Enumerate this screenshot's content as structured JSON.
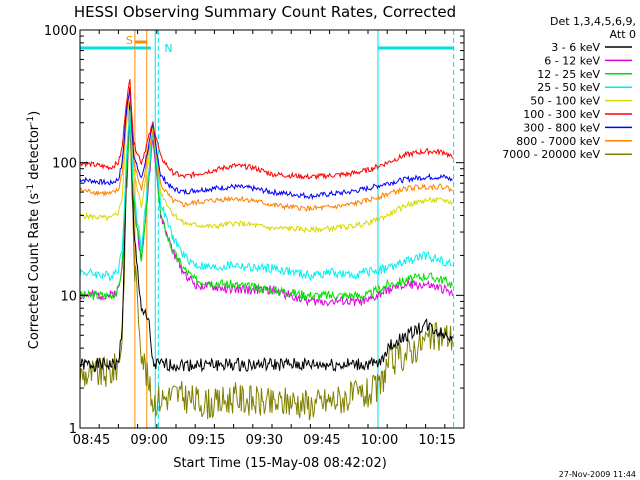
{
  "chart_data": {
    "type": "line",
    "title": "HESSI Observing Summary Count Rates, Corrected",
    "xlabel": "Start Time (15-May-08 08:42:02)",
    "ylabel_prefix": "Corrected Count Rate (s",
    "ylabel_sup1": "-1",
    "ylabel_mid": " detector",
    "ylabel_sup2": "-1",
    "ylabel_suffix": ")",
    "y_scale": "log",
    "ylim": [
      1,
      1000
    ],
    "xlim_minutes": [
      0,
      100
    ],
    "x_ticks": [
      {
        "minute": 3,
        "label": "08:45"
      },
      {
        "minute": 18,
        "label": "09:00"
      },
      {
        "minute": 33,
        "label": "09:15"
      },
      {
        "minute": 48,
        "label": "09:30"
      },
      {
        "minute": 63,
        "label": "09:45"
      },
      {
        "minute": 78,
        "label": "10:00"
      },
      {
        "minute": 93,
        "label": "10:15"
      }
    ],
    "y_ticks": [
      {
        "value": 1,
        "label": "1"
      },
      {
        "value": 10,
        "label": "10"
      },
      {
        "value": 100,
        "label": "100"
      },
      {
        "value": 1000,
        "label": "1000"
      }
    ],
    "legend_header": [
      "Det 1,3,4,5,6,9,",
      "Att 0"
    ],
    "legend_position": "right",
    "series": [
      {
        "name": "3 - 6 keV",
        "color": "#000000",
        "points": [
          [
            0,
            3
          ],
          [
            8,
            3
          ],
          [
            10,
            3
          ],
          [
            11,
            6
          ],
          [
            12,
            60
          ],
          [
            13,
            300
          ],
          [
            14,
            30
          ],
          [
            16,
            8
          ],
          [
            18,
            6
          ],
          [
            19,
            3
          ],
          [
            25,
            3
          ],
          [
            40,
            3
          ],
          [
            55,
            3
          ],
          [
            70,
            3
          ],
          [
            78,
            3
          ],
          [
            80,
            4
          ],
          [
            85,
            5
          ],
          [
            90,
            6
          ],
          [
            95,
            5
          ],
          [
            97,
            5
          ]
        ]
      },
      {
        "name": "6 - 12 keV",
        "color": "#e000e0",
        "points": [
          [
            0,
            10
          ],
          [
            8,
            10
          ],
          [
            10,
            11
          ],
          [
            11,
            16
          ],
          [
            12,
            80
          ],
          [
            13,
            200
          ],
          [
            14,
            50
          ],
          [
            16,
            18
          ],
          [
            19,
            160
          ],
          [
            21,
            40
          ],
          [
            24,
            22
          ],
          [
            27,
            15
          ],
          [
            30,
            12
          ],
          [
            40,
            11
          ],
          [
            50,
            11
          ],
          [
            60,
            9
          ],
          [
            70,
            9
          ],
          [
            75,
            9
          ],
          [
            80,
            11
          ],
          [
            85,
            12
          ],
          [
            90,
            12
          ],
          [
            95,
            11
          ],
          [
            97,
            10
          ]
        ]
      },
      {
        "name": "12 - 25 keV",
        "color": "#00e000",
        "points": [
          [
            0,
            10
          ],
          [
            8,
            10
          ],
          [
            10,
            11
          ],
          [
            11,
            17
          ],
          [
            12,
            80
          ],
          [
            13,
            200
          ],
          [
            14,
            50
          ],
          [
            16,
            18
          ],
          [
            19,
            170
          ],
          [
            21,
            40
          ],
          [
            24,
            22
          ],
          [
            27,
            16
          ],
          [
            30,
            13
          ],
          [
            40,
            12
          ],
          [
            50,
            11
          ],
          [
            60,
            10
          ],
          [
            70,
            10
          ],
          [
            75,
            10
          ],
          [
            80,
            12
          ],
          [
            85,
            13
          ],
          [
            90,
            14
          ],
          [
            95,
            13
          ],
          [
            97,
            12
          ]
        ]
      },
      {
        "name": "25 - 50 keV",
        "color": "#00f0f0",
        "points": [
          [
            0,
            15
          ],
          [
            8,
            14
          ],
          [
            10,
            16
          ],
          [
            11,
            22
          ],
          [
            12,
            100
          ],
          [
            13,
            250
          ],
          [
            14,
            60
          ],
          [
            16,
            22
          ],
          [
            19,
            190
          ],
          [
            21,
            50
          ],
          [
            24,
            28
          ],
          [
            27,
            20
          ],
          [
            30,
            17
          ],
          [
            35,
            16
          ],
          [
            40,
            17
          ],
          [
            45,
            16
          ],
          [
            50,
            16
          ],
          [
            55,
            15
          ],
          [
            60,
            14
          ],
          [
            65,
            15
          ],
          [
            70,
            14
          ],
          [
            75,
            15
          ],
          [
            80,
            16
          ],
          [
            85,
            18
          ],
          [
            90,
            20
          ],
          [
            95,
            18
          ],
          [
            97,
            17
          ]
        ]
      },
      {
        "name": "50 - 100 keV",
        "color": "#d8d800",
        "points": [
          [
            0,
            40
          ],
          [
            8,
            38
          ],
          [
            10,
            42
          ],
          [
            11,
            55
          ],
          [
            12,
            180
          ],
          [
            13,
            330
          ],
          [
            14,
            90
          ],
          [
            16,
            45
          ],
          [
            19,
            185
          ],
          [
            21,
            60
          ],
          [
            24,
            42
          ],
          [
            27,
            35
          ],
          [
            30,
            34
          ],
          [
            35,
            33
          ],
          [
            40,
            35
          ],
          [
            45,
            34
          ],
          [
            50,
            32
          ],
          [
            55,
            32
          ],
          [
            60,
            31
          ],
          [
            65,
            32
          ],
          [
            70,
            33
          ],
          [
            75,
            35
          ],
          [
            80,
            40
          ],
          [
            85,
            48
          ],
          [
            90,
            52
          ],
          [
            95,
            52
          ],
          [
            97,
            50
          ]
        ]
      },
      {
        "name": "100 - 300 keV",
        "color": "#ff0000",
        "points": [
          [
            0,
            100
          ],
          [
            8,
            92
          ],
          [
            10,
            100
          ],
          [
            11,
            130
          ],
          [
            12,
            280
          ],
          [
            13,
            420
          ],
          [
            14,
            140
          ],
          [
            16,
            100
          ],
          [
            19,
            200
          ],
          [
            21,
            110
          ],
          [
            24,
            85
          ],
          [
            27,
            78
          ],
          [
            30,
            82
          ],
          [
            35,
            88
          ],
          [
            40,
            95
          ],
          [
            45,
            92
          ],
          [
            50,
            82
          ],
          [
            55,
            80
          ],
          [
            60,
            78
          ],
          [
            65,
            80
          ],
          [
            70,
            82
          ],
          [
            75,
            88
          ],
          [
            80,
            100
          ],
          [
            85,
            115
          ],
          [
            90,
            122
          ],
          [
            95,
            120
          ],
          [
            97,
            108
          ]
        ]
      },
      {
        "name": "300 - 800 keV",
        "color": "#0000ff",
        "points": [
          [
            0,
            75
          ],
          [
            8,
            70
          ],
          [
            10,
            75
          ],
          [
            11,
            100
          ],
          [
            12,
            230
          ],
          [
            13,
            380
          ],
          [
            14,
            110
          ],
          [
            16,
            75
          ],
          [
            19,
            190
          ],
          [
            21,
            80
          ],
          [
            24,
            64
          ],
          [
            27,
            60
          ],
          [
            30,
            62
          ],
          [
            35,
            64
          ],
          [
            40,
            66
          ],
          [
            45,
            64
          ],
          [
            50,
            60
          ],
          [
            55,
            58
          ],
          [
            60,
            56
          ],
          [
            65,
            58
          ],
          [
            70,
            60
          ],
          [
            75,
            64
          ],
          [
            80,
            70
          ],
          [
            85,
            75
          ],
          [
            90,
            78
          ],
          [
            95,
            78
          ],
          [
            97,
            74
          ]
        ]
      },
      {
        "name": "800 - 7000 keV",
        "color": "#ff8000",
        "points": [
          [
            0,
            62
          ],
          [
            8,
            58
          ],
          [
            10,
            62
          ],
          [
            11,
            85
          ],
          [
            12,
            210
          ],
          [
            13,
            360
          ],
          [
            14,
            100
          ],
          [
            16,
            62
          ],
          [
            19,
            180
          ],
          [
            21,
            68
          ],
          [
            24,
            52
          ],
          [
            27,
            48
          ],
          [
            30,
            50
          ],
          [
            35,
            52
          ],
          [
            40,
            54
          ],
          [
            45,
            52
          ],
          [
            50,
            48
          ],
          [
            55,
            46
          ],
          [
            60,
            45
          ],
          [
            65,
            46
          ],
          [
            70,
            48
          ],
          [
            75,
            52
          ],
          [
            80,
            58
          ],
          [
            85,
            64
          ],
          [
            90,
            66
          ],
          [
            95,
            66
          ],
          [
            97,
            62
          ]
        ]
      },
      {
        "name": "7000 - 20000 keV",
        "color": "#808000",
        "points": [
          [
            0,
            2.5
          ],
          [
            8,
            2.6
          ],
          [
            10,
            3
          ],
          [
            11,
            5
          ],
          [
            12,
            50
          ],
          [
            13,
            250
          ],
          [
            14,
            20
          ],
          [
            16,
            4
          ],
          [
            18,
            2
          ],
          [
            19,
            1.6
          ],
          [
            25,
            1.8
          ],
          [
            30,
            1.6
          ],
          [
            35,
            1.5
          ],
          [
            40,
            1.7
          ],
          [
            45,
            1.6
          ],
          [
            50,
            1.5
          ],
          [
            55,
            1.6
          ],
          [
            60,
            1.5
          ],
          [
            65,
            1.6
          ],
          [
            70,
            1.7
          ],
          [
            75,
            1.8
          ],
          [
            78,
            2
          ],
          [
            80,
            3
          ],
          [
            85,
            3.6
          ],
          [
            90,
            4.6
          ],
          [
            95,
            5
          ],
          [
            97,
            4.8
          ]
        ]
      }
    ],
    "annotations": {
      "s_label": "S",
      "n_label": "N",
      "orange_verticals_minute": [
        14.3,
        17.4
      ],
      "cyan_solid_verticals_minute": [
        19.6,
        77.6
      ],
      "cyan_dashed_verticals_minute": [
        20.4,
        97.3
      ],
      "night_bars": [
        [
          0,
          18.5
        ],
        [
          77.6,
          97.3
        ]
      ],
      "saa_bar": [
        14.3,
        17.4
      ]
    }
  },
  "footer": {
    "date_stamp": "27-Nov-2009 11:44"
  },
  "colors": {
    "axis": "#000000",
    "cyan_marker": "#00e0e0",
    "orange_marker": "#ff8c00"
  }
}
